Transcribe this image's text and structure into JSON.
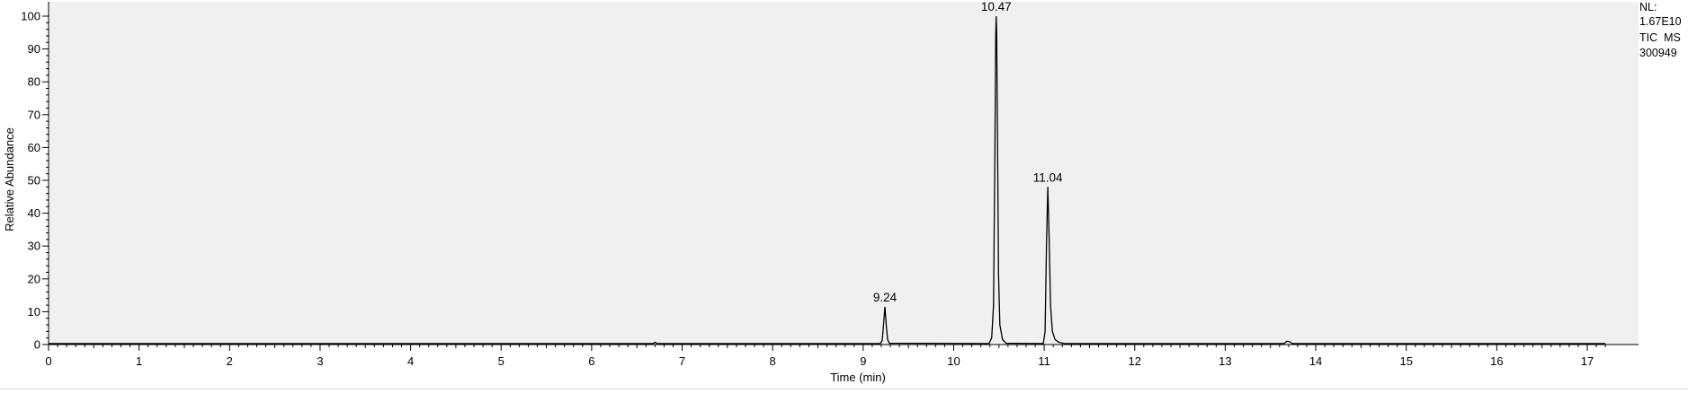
{
  "info_box": {
    "nl_label": "NL:",
    "nl_value": "1.67E10",
    "scan_filter": "TIC  MS",
    "file_name": "300949"
  },
  "chart_data": {
    "type": "line",
    "title": "",
    "xlabel": "Time (min)",
    "ylabel": "Relative Abundance",
    "xlim": [
      0,
      17.2
    ],
    "ylim": [
      0,
      100
    ],
    "x_ticks": [
      0,
      1,
      2,
      3,
      4,
      5,
      6,
      7,
      8,
      9,
      10,
      11,
      12,
      13,
      14,
      15,
      16,
      17
    ],
    "y_ticks": [
      0,
      10,
      20,
      30,
      40,
      50,
      60,
      70,
      80,
      90,
      100
    ],
    "x_minor_step": 0.1,
    "y_minor_step": 2,
    "grid": false,
    "plot_background": "#f0f0f0",
    "line_color": "#000000",
    "peaks": [
      {
        "rt": 9.24,
        "label": "9.24",
        "height": 11.5
      },
      {
        "rt": 10.47,
        "label": "10.47",
        "height": 100
      },
      {
        "rt": 11.04,
        "label": "11.04",
        "height": 48
      }
    ],
    "series": [
      {
        "x": [
          0,
          6.68,
          6.7,
          6.72,
          9.19,
          9.21,
          9.225,
          9.24,
          9.255,
          9.27,
          9.29,
          10.39,
          10.42,
          10.44,
          10.455,
          10.465,
          10.47,
          10.475,
          10.485,
          10.495,
          10.51,
          10.54,
          10.58,
          10.99,
          11.01,
          11.025,
          11.04,
          11.055,
          11.07,
          11.09,
          11.12,
          11.16,
          11.22,
          13.65,
          13.68,
          13.71,
          13.74,
          17.2
        ],
        "y": [
          0.3,
          0.3,
          0.7,
          0.3,
          0.3,
          1.2,
          6,
          11.5,
          6,
          1.5,
          0.4,
          0.3,
          2,
          12,
          58,
          95,
          100,
          95,
          60,
          22,
          6,
          1.5,
          0.4,
          0.3,
          4,
          30,
          48,
          32,
          12,
          4,
          1.5,
          0.7,
          0.3,
          0.3,
          1,
          0.9,
          0.3,
          0.3
        ]
      }
    ]
  }
}
